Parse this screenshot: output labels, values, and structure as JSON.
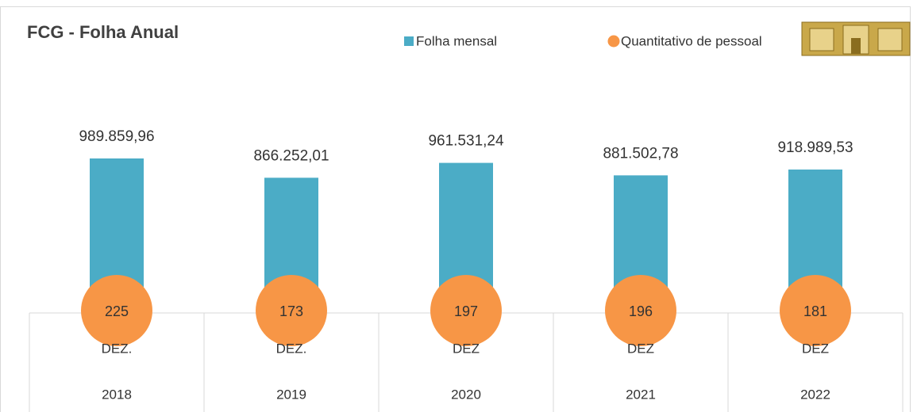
{
  "chart_data": {
    "type": "bar",
    "title": "FCG - Folha Anual",
    "categories": [
      "DEZ.",
      "DEZ.",
      "DEZ",
      "DEZ",
      "DEZ"
    ],
    "years": [
      "2018",
      "2019",
      "2020",
      "2021",
      "2022"
    ],
    "series": [
      {
        "name": "Folha mensal",
        "color": "#4bacc6",
        "values": [
          989859.96,
          866252.01,
          961531.24,
          881502.78,
          918989.53
        ],
        "value_labels": [
          "989.859,96",
          "866.252,01",
          "961.531,24",
          "881.502,78",
          "918.989,53"
        ]
      },
      {
        "name": "Quantitativo de pessoal",
        "color": "#f79646",
        "values": [
          225,
          173,
          197,
          196,
          181
        ]
      }
    ],
    "ylim": [
      0,
      1000000
    ]
  }
}
